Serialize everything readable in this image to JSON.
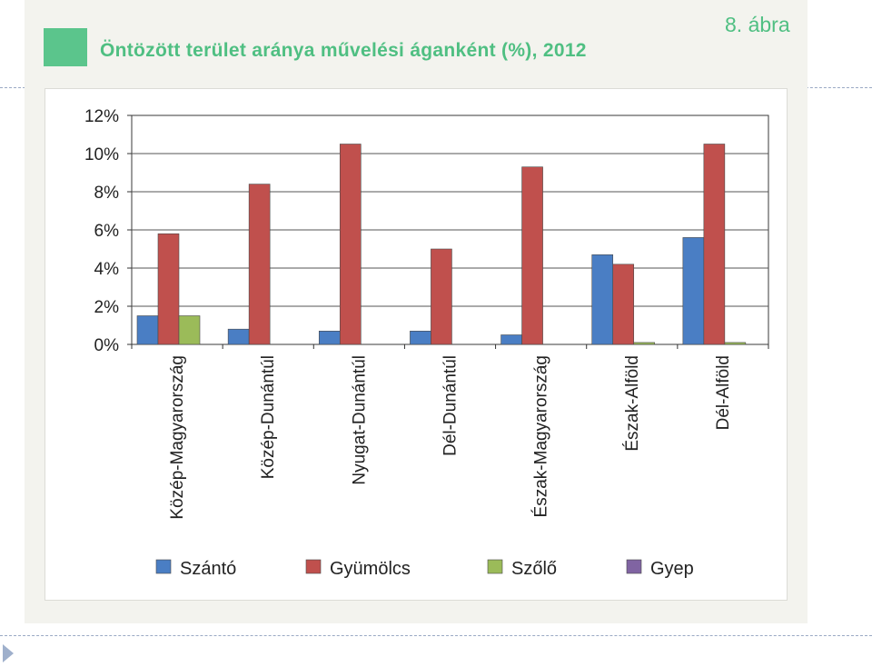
{
  "header": {
    "title": "Öntözött terület aránya művelési áganként (%), 2012",
    "figure_label": "8. ábra"
  },
  "colors": {
    "accent": "#5bc58c",
    "szanto": "#4a7ec4",
    "gyumolcs": "#c0504d",
    "szolo": "#9bbb59",
    "gyep": "#8064a2"
  },
  "chart_data": {
    "type": "bar",
    "title": "Öntözött terület aránya művelési áganként (%), 2012",
    "xlabel": "",
    "ylabel": "",
    "ylim": [
      0,
      12
    ],
    "yticks": [
      "0%",
      "2%",
      "4%",
      "6%",
      "8%",
      "10%",
      "12%"
    ],
    "grid": true,
    "legend_position": "bottom",
    "categories": [
      "Közép-Magyarország",
      "Közép-Dunántúl",
      "Nyugat-Dunántúl",
      "Dél-Dunántúl",
      "Észak-Magyarország",
      "Észak-Alföld",
      "Dél-Alföld"
    ],
    "series": [
      {
        "name": "Szántó",
        "color": "#4a7ec4",
        "values": [
          1.5,
          0.8,
          0.7,
          0.7,
          0.5,
          4.7,
          5.6
        ]
      },
      {
        "name": "Gyümölcs",
        "color": "#c0504d",
        "values": [
          5.8,
          8.4,
          10.5,
          5.0,
          9.3,
          4.2,
          10.5
        ]
      },
      {
        "name": "Szőlő",
        "color": "#9bbb59",
        "values": [
          1.5,
          0,
          0,
          0,
          0,
          0.1,
          0.1
        ]
      },
      {
        "name": "Gyep",
        "color": "#8064a2",
        "values": [
          0,
          0,
          0,
          0,
          0,
          0,
          0
        ]
      }
    ]
  }
}
